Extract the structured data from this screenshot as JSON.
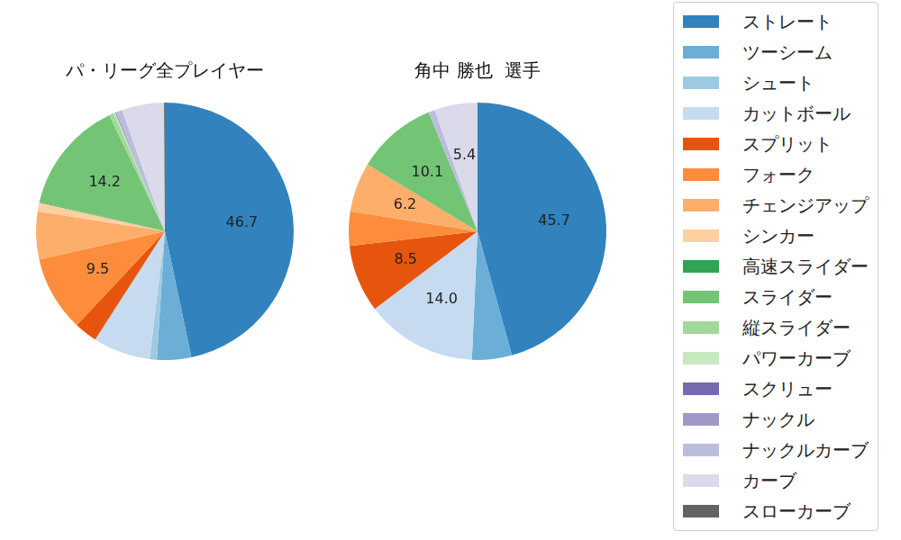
{
  "chart_data": [
    {
      "type": "pie",
      "title": "パ・リーグ全プレイヤー",
      "categories": [
        "ストレート",
        "ツーシーム",
        "シュート",
        "カットボール",
        "スプリット",
        "フォーク",
        "チェンジアップ",
        "シンカー",
        "高速スライダー",
        "スライダー",
        "縦スライダー",
        "パワーカーブ",
        "スクリュー",
        "ナックル",
        "ナックルカーブ",
        "カーブ",
        "スローカーブ"
      ],
      "values": [
        46.7,
        4.3,
        0.9,
        7.2,
        2.9,
        9.5,
        6.0,
        1.1,
        0.1,
        14.2,
        0.6,
        0.2,
        0.1,
        0.0,
        0.8,
        5.3,
        0.1
      ],
      "value_labels": [
        "46.7",
        null,
        null,
        null,
        null,
        "9.5",
        null,
        null,
        null,
        "14.2",
        null,
        null,
        null,
        null,
        null,
        null,
        null
      ],
      "colors": [
        "#3182bd",
        "#6baed6",
        "#9ecae1",
        "#c6dbef",
        "#e6550d",
        "#fd8d3c",
        "#fdae6b",
        "#fdd0a2",
        "#31a354",
        "#74c476",
        "#a1d99b",
        "#c7e9c0",
        "#756bb1",
        "#9e9ac8",
        "#bcbddc",
        "#dadaeb",
        "#636363"
      ],
      "data_labels": true
    },
    {
      "type": "pie",
      "title": "角中 勝也  選手",
      "categories": [
        "ストレート",
        "ツーシーム",
        "シュート",
        "カットボール",
        "スプリット",
        "フォーク",
        "チェンジアップ",
        "シンカー",
        "高速スライダー",
        "スライダー",
        "縦スライダー",
        "パワーカーブ",
        "スクリュー",
        "ナックル",
        "ナックルカーブ",
        "カーブ",
        "スローカーブ"
      ],
      "values": [
        45.7,
        5.0,
        0.0,
        14.0,
        8.5,
        4.3,
        6.2,
        0.0,
        0.0,
        10.1,
        0.0,
        0.0,
        0.0,
        0.0,
        0.8,
        5.4,
        0.0
      ],
      "value_labels": [
        "45.7",
        null,
        null,
        "14.0",
        "8.5",
        null,
        "6.2",
        null,
        null,
        "10.1",
        null,
        null,
        null,
        null,
        null,
        "5.4",
        null
      ],
      "colors": [
        "#3182bd",
        "#6baed6",
        "#9ecae1",
        "#c6dbef",
        "#e6550d",
        "#fd8d3c",
        "#fdae6b",
        "#fdd0a2",
        "#31a354",
        "#74c476",
        "#a1d99b",
        "#c7e9c0",
        "#756bb1",
        "#9e9ac8",
        "#bcbddc",
        "#dadaeb",
        "#636363"
      ],
      "data_labels": true,
      "legend": "right"
    }
  ]
}
